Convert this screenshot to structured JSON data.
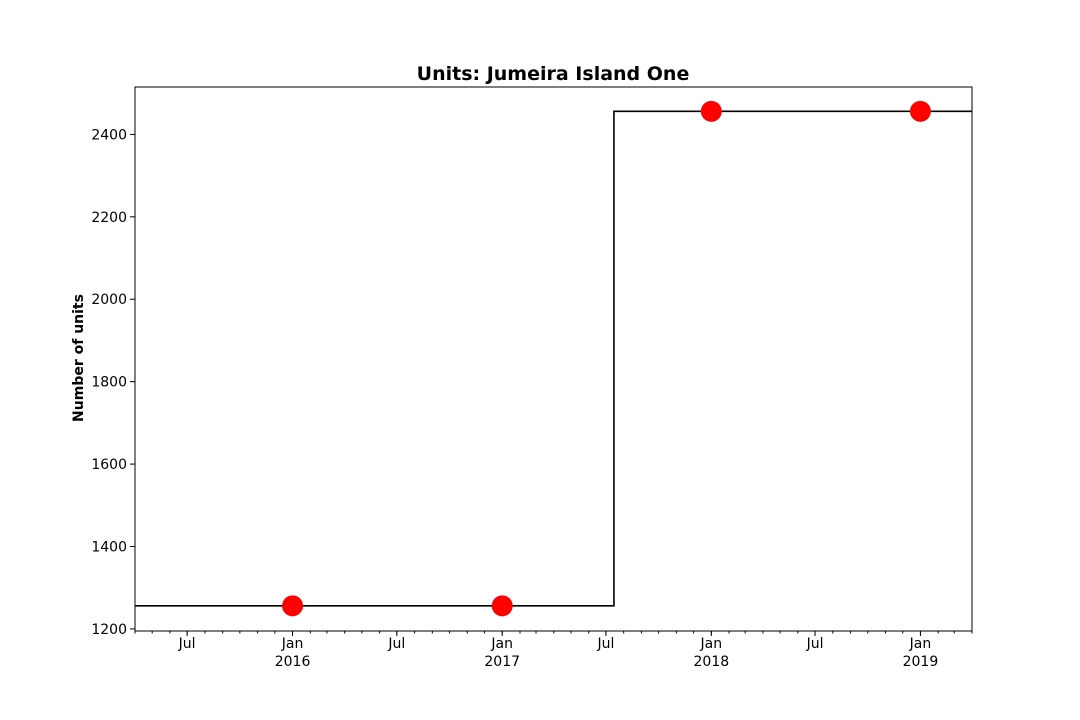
{
  "chart_data": {
    "type": "line",
    "title": "Units: Jumeira Island One",
    "xlabel": "",
    "ylabel": "Number of units",
    "drawstyle": "steps-post",
    "line_color": "#000000",
    "marker_color": "#ff0000",
    "grid": false,
    "xlim": [
      "2015-04-01",
      "2019-04-01"
    ],
    "ylim": [
      1195,
      2515
    ],
    "series": [
      {
        "step_line": [
          {
            "x": "2015-04-01",
            "y": 1256
          },
          {
            "x": "2017-07-15",
            "y": 2456
          },
          {
            "x": "2019-04-01",
            "y": 2456
          }
        ],
        "points": [
          {
            "x": "2016-01-01",
            "y": 1256
          },
          {
            "x": "2017-01-01",
            "y": 1256
          },
          {
            "x": "2018-01-01",
            "y": 2456
          },
          {
            "x": "2019-01-01",
            "y": 2456
          }
        ]
      }
    ],
    "y_ticks": [
      1200,
      1400,
      1600,
      1800,
      2000,
      2200,
      2400
    ],
    "x_major_ticks": [
      {
        "x": "2015-07-01",
        "label": "Jul",
        "year": ""
      },
      {
        "x": "2016-01-01",
        "label": "Jan",
        "year": "2016"
      },
      {
        "x": "2016-07-01",
        "label": "Jul",
        "year": ""
      },
      {
        "x": "2017-01-01",
        "label": "Jan",
        "year": "2017"
      },
      {
        "x": "2017-07-01",
        "label": "Jul",
        "year": ""
      },
      {
        "x": "2018-01-01",
        "label": "Jan",
        "year": "2018"
      },
      {
        "x": "2018-07-01",
        "label": "Jul",
        "year": ""
      },
      {
        "x": "2019-01-01",
        "label": "Jan",
        "year": "2019"
      }
    ]
  }
}
